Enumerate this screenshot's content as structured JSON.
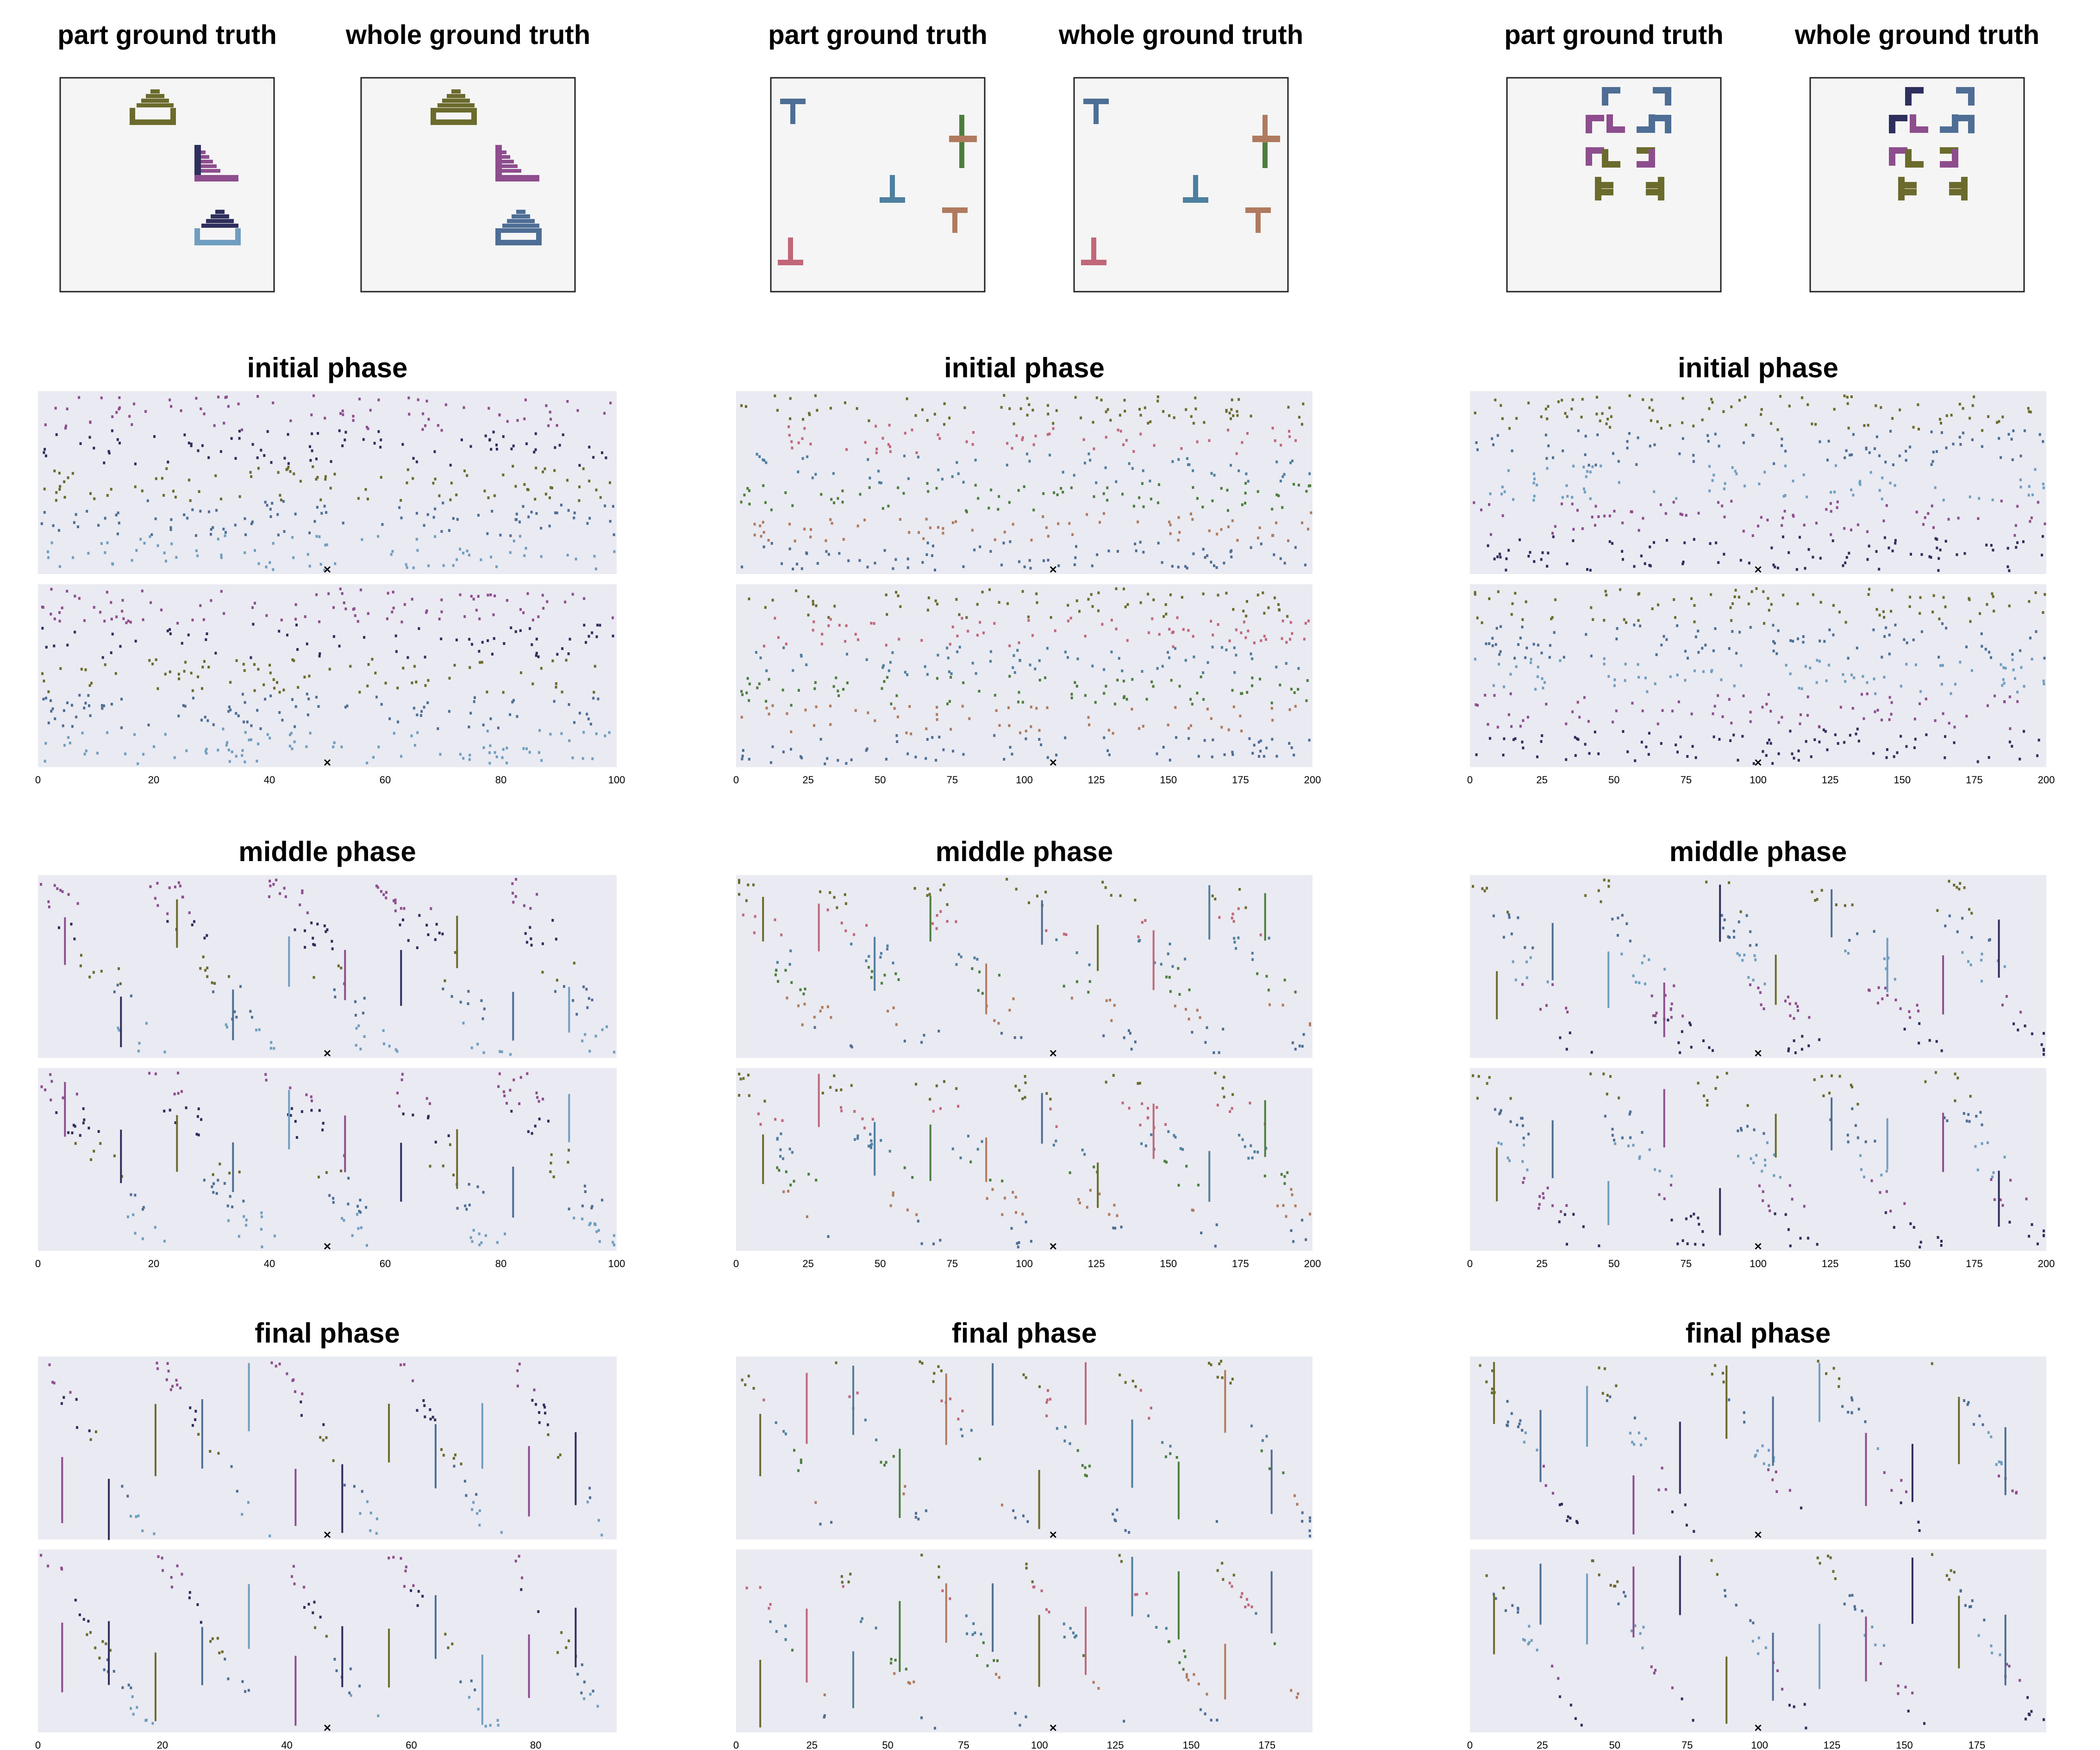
{
  "figure": {
    "ground_truth": [
      {
        "part_title": "part ground truth",
        "whole_title": "whole ground truth",
        "variant": "house"
      },
      {
        "part_title": "part ground truth",
        "whole_title": "whole ground truth",
        "variant": "tees"
      },
      {
        "part_title": "part ground truth",
        "whole_title": "whole ground truth",
        "variant": "corners"
      }
    ],
    "phase_titles": [
      "initial phase",
      "middle phase",
      "final phase"
    ],
    "palette": [
      "#6b6b2e",
      "#4e6e96",
      "#8e4e8e",
      "#2f2f5e",
      "#4e7e3e",
      "#6f9ec0",
      "#c0677a",
      "#b07a5e",
      "#4a6b2a",
      "#4e7f9e"
    ],
    "panel_background": "#eaeaf2",
    "gt_background": "#f5f5f5"
  },
  "chart_data": [
    {
      "type": "scatter",
      "panel": "col1-initial",
      "title": "initial phase",
      "x_ticks": [
        "0",
        "20",
        "40",
        "60",
        "80",
        "100"
      ],
      "xlim": [
        0,
        100
      ],
      "marker": "x"
    },
    {
      "type": "scatter",
      "panel": "col2-initial",
      "title": "initial phase",
      "x_ticks": [
        "0",
        "25",
        "50",
        "75",
        "100",
        "125",
        "150",
        "175",
        "200"
      ],
      "xlim": [
        0,
        200
      ],
      "marker": "x"
    },
    {
      "type": "scatter",
      "panel": "col3-initial",
      "title": "initial phase",
      "x_ticks": [
        "0",
        "25",
        "50",
        "75",
        "100",
        "125",
        "150",
        "175",
        "200"
      ],
      "xlim": [
        0,
        200
      ],
      "marker": "x"
    },
    {
      "type": "scatter",
      "panel": "col1-middle",
      "title": "middle phase",
      "x_ticks": [
        "0",
        "20",
        "40",
        "60",
        "80",
        "100"
      ],
      "xlim": [
        0,
        100
      ],
      "marker": "x"
    },
    {
      "type": "scatter",
      "panel": "col2-middle",
      "title": "middle phase",
      "x_ticks": [
        "0",
        "25",
        "50",
        "75",
        "100",
        "125",
        "150",
        "175",
        "200"
      ],
      "xlim": [
        0,
        200
      ],
      "marker": "x"
    },
    {
      "type": "scatter",
      "panel": "col3-middle",
      "title": "middle phase",
      "x_ticks": [
        "0",
        "25",
        "50",
        "75",
        "100",
        "125",
        "150",
        "175",
        "200"
      ],
      "xlim": [
        0,
        200
      ],
      "marker": "x"
    },
    {
      "type": "scatter",
      "panel": "col1-final",
      "title": "final phase",
      "x_ticks": [
        "0",
        "20",
        "40",
        "60",
        "80"
      ],
      "xlim": [
        0,
        93
      ],
      "marker": "x"
    },
    {
      "type": "scatter",
      "panel": "col2-final",
      "title": "final phase",
      "x_ticks": [
        "0",
        "25",
        "50",
        "75",
        "100",
        "125",
        "150",
        "175"
      ],
      "xlim": [
        0,
        190
      ],
      "marker": "x"
    },
    {
      "type": "scatter",
      "panel": "col3-final",
      "title": "final phase",
      "x_ticks": [
        "0",
        "25",
        "50",
        "75",
        "100",
        "125",
        "150",
        "175"
      ],
      "xlim": [
        0,
        199
      ],
      "marker": "x"
    }
  ]
}
